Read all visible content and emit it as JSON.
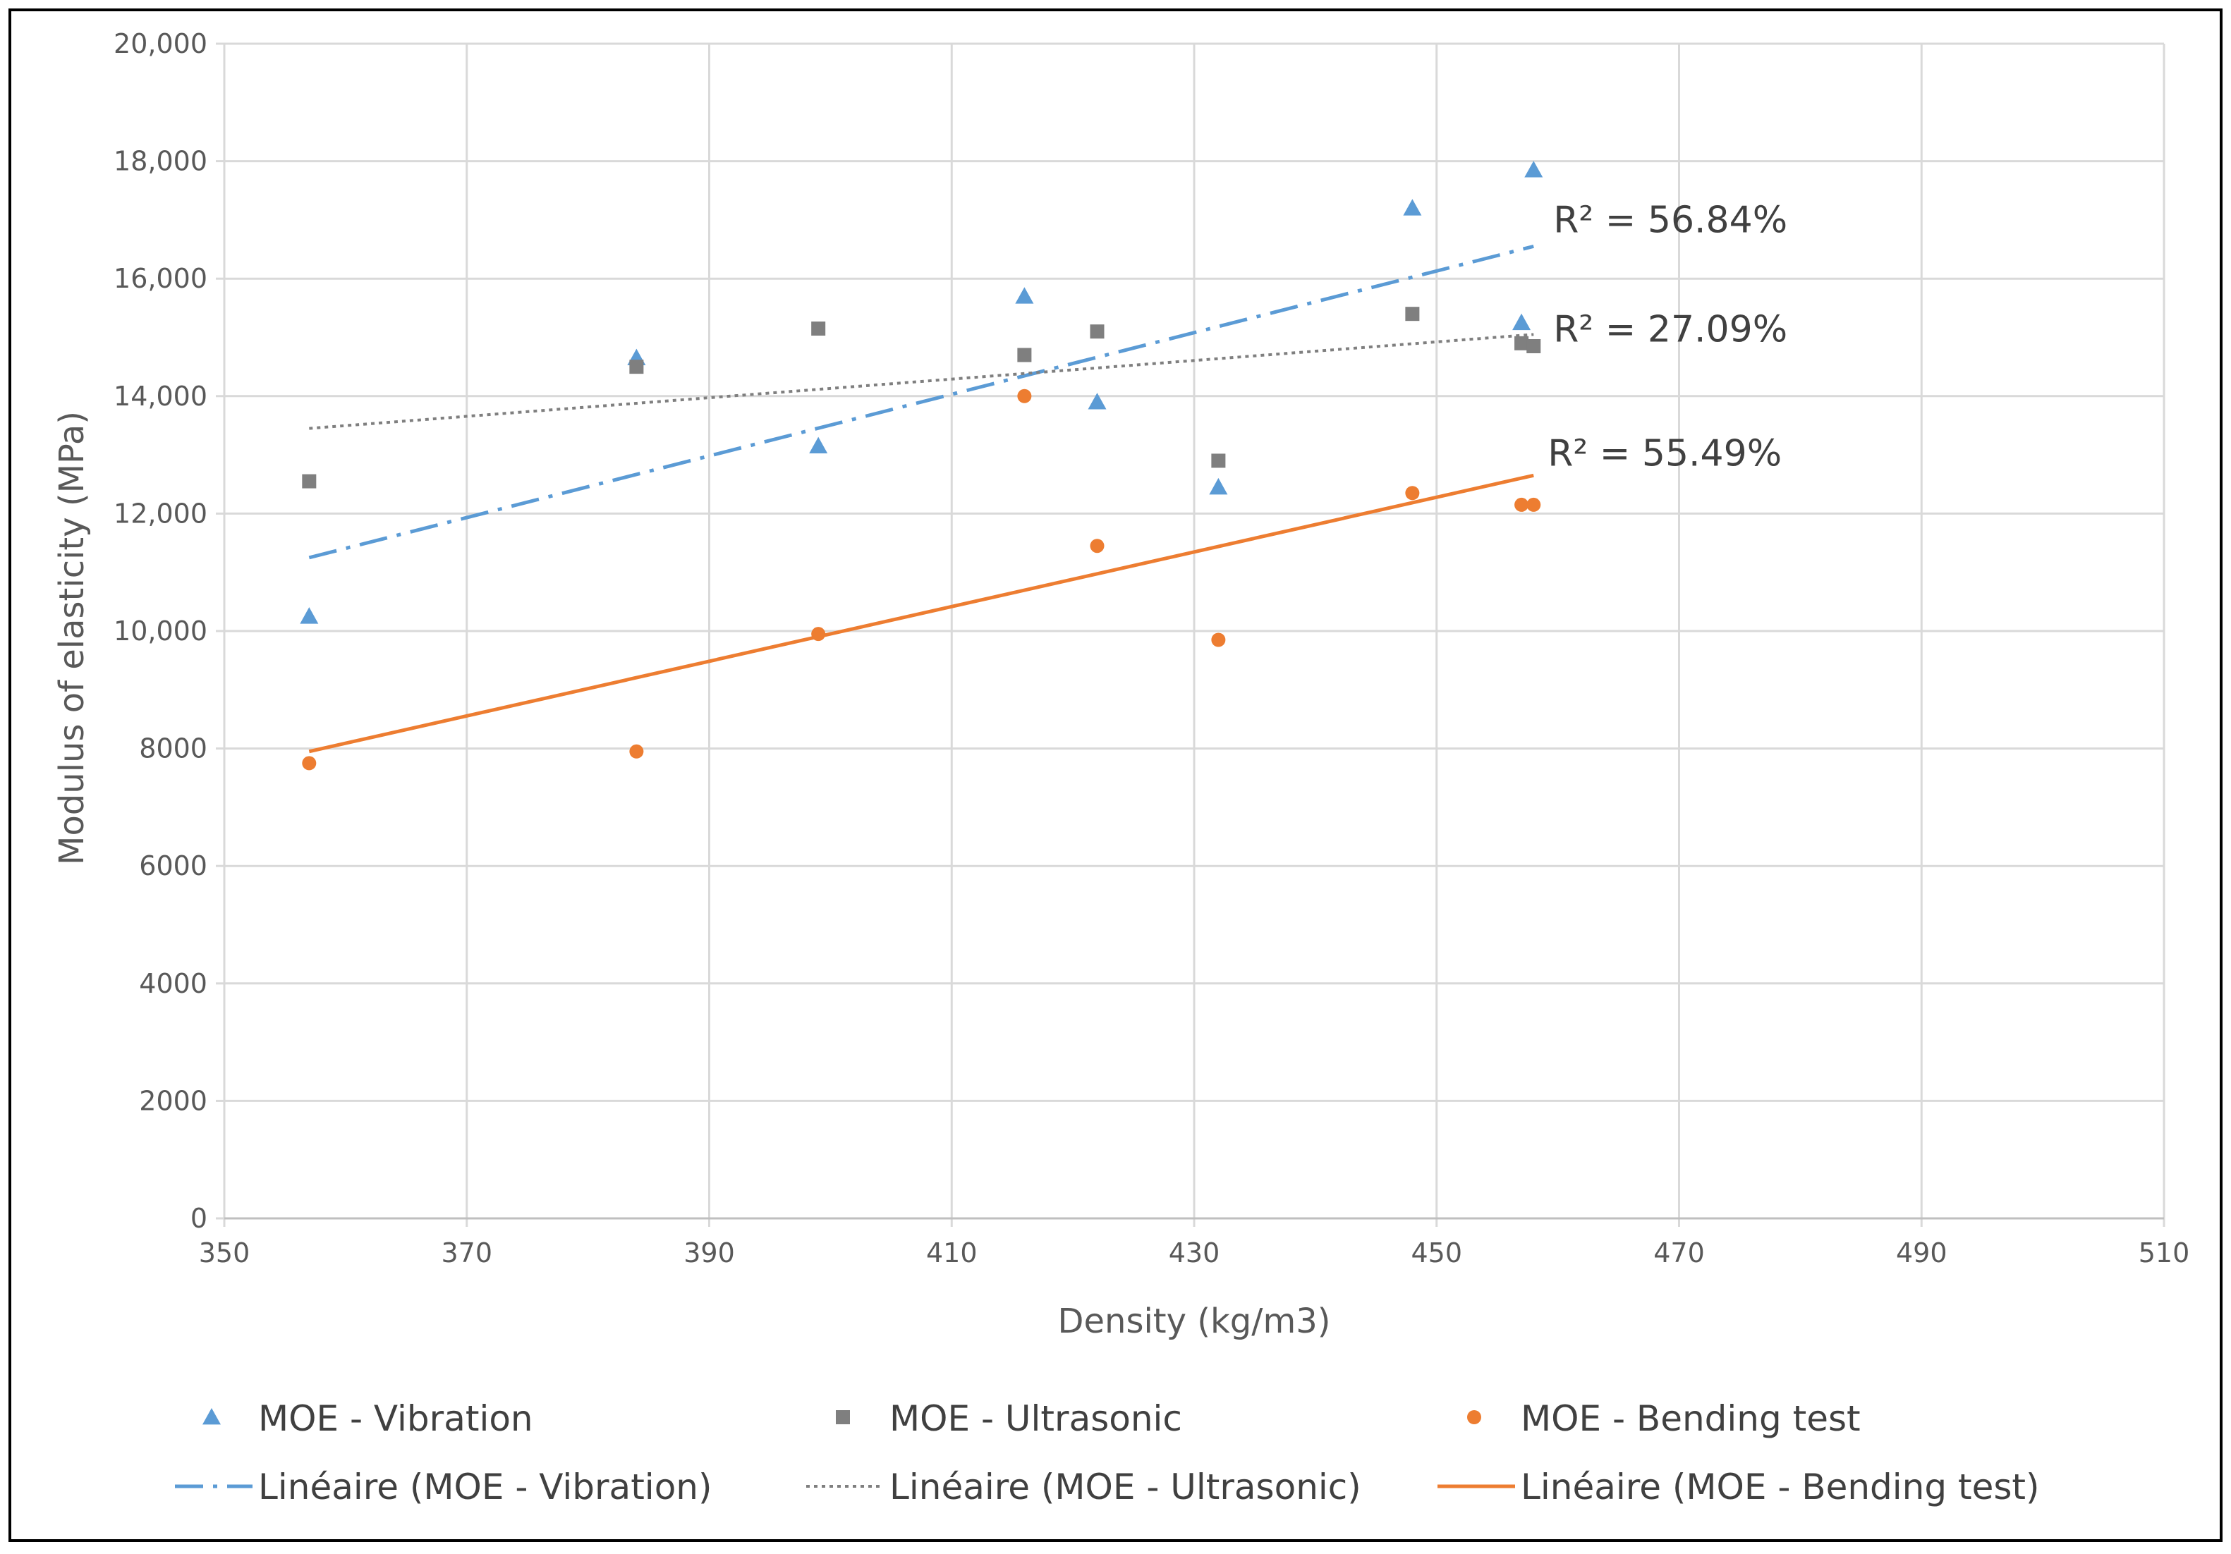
{
  "chart_data": {
    "type": "scatter",
    "title": "",
    "xlabel": "Density (kg/m3)",
    "ylabel": "Modulus of elasticity (MPa)",
    "xlim": [
      350,
      510
    ],
    "ylim": [
      0,
      20000
    ],
    "x_ticks": [
      "350",
      "370",
      "390",
      "410",
      "430",
      "450",
      "470",
      "490",
      "510"
    ],
    "y_ticks": [
      "0",
      "2000",
      "4000",
      "6000",
      "8000",
      "10,000",
      "12,000",
      "14,000",
      "16,000",
      "18,000",
      "20,000"
    ],
    "grid": true,
    "legend_position": "bottom",
    "colors": {
      "vibration": "#5B9BD5",
      "ultrasonic": "#7F7F7F",
      "bending": "#ED7D31",
      "grid": "#D9D9D9",
      "frame": "#000000"
    },
    "series": [
      {
        "key": "vibration",
        "name": "MOE - Vibration",
        "marker": "triangle",
        "points": [
          [
            357,
            10250
          ],
          [
            384,
            14650
          ],
          [
            399,
            13150
          ],
          [
            416,
            15700
          ],
          [
            422,
            13900
          ],
          [
            432,
            12450
          ],
          [
            448,
            17200
          ],
          [
            457,
            15250
          ],
          [
            458,
            17850
          ]
        ],
        "trend": {
          "name": "Linéaire (MOE - Vibration)",
          "style": "dash-dot",
          "from": [
            357,
            11250
          ],
          "to": [
            458,
            16550
          ],
          "r2_label": "R² = 56.84%"
        }
      },
      {
        "key": "ultrasonic",
        "name": "MOE - Ultrasonic",
        "marker": "square",
        "points": [
          [
            357,
            12550
          ],
          [
            384,
            14500
          ],
          [
            399,
            15150
          ],
          [
            416,
            14700
          ],
          [
            422,
            15100
          ],
          [
            432,
            12900
          ],
          [
            448,
            15400
          ],
          [
            457,
            14900
          ],
          [
            458,
            14850
          ]
        ],
        "trend": {
          "name": "Linéaire (MOE - Ultrasonic)",
          "style": "dotted",
          "from": [
            357,
            13450
          ],
          "to": [
            458,
            15050
          ],
          "r2_label": "R² = 27.09%"
        }
      },
      {
        "key": "bending",
        "name": "MOE - Bending test",
        "marker": "circle",
        "points": [
          [
            357,
            7750
          ],
          [
            384,
            7950
          ],
          [
            399,
            9950
          ],
          [
            416,
            14000
          ],
          [
            422,
            11450
          ],
          [
            432,
            9850
          ],
          [
            448,
            12350
          ],
          [
            457,
            12150
          ],
          [
            458,
            12150
          ]
        ],
        "trend": {
          "name": "Linéaire (MOE - Bending test)",
          "style": "solid",
          "from": [
            357,
            7950
          ],
          "to": [
            458,
            12650
          ],
          "r2_label": "R² = 55.49%"
        }
      }
    ]
  }
}
